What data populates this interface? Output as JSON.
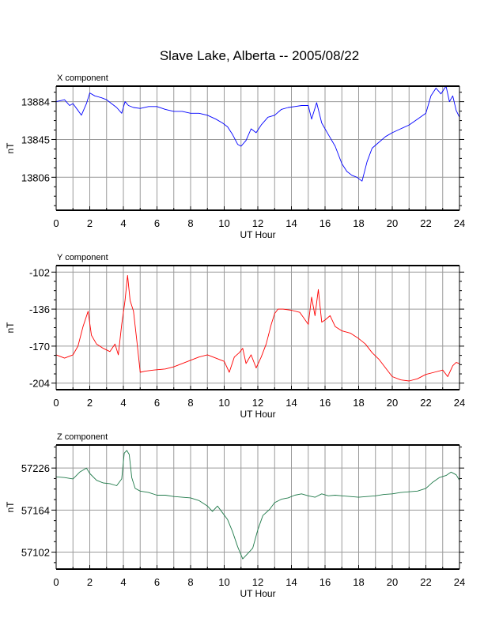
{
  "title": "Slave Lake, Alberta -- 2005/08/22",
  "colors": {
    "x_series": "#0000ff",
    "y_series": "#ff0000",
    "z_series": "#1f7a4a",
    "grid": "#9a9a9a",
    "frame": "#000000",
    "background": "#ffffff"
  },
  "chart_data": [
    {
      "type": "line",
      "panel_label": "X component",
      "xlabel": "UT Hour",
      "ylabel": "nT",
      "xlim": [
        0,
        24
      ],
      "ylim": [
        13772,
        13900
      ],
      "xticks": [
        0,
        2,
        4,
        6,
        8,
        10,
        12,
        14,
        16,
        18,
        20,
        22,
        24
      ],
      "x_minor_step": 1,
      "yticks": [
        13806,
        13845,
        13884
      ],
      "grid": true,
      "series": [
        {
          "color": "#0000ff",
          "x": [
            0,
            0.5,
            0.8,
            1.0,
            1.3,
            1.5,
            1.8,
            2.0,
            2.3,
            2.7,
            3.0,
            3.3,
            3.6,
            3.9,
            4.1,
            4.3,
            4.6,
            5.0,
            5.5,
            6.0,
            6.5,
            7.0,
            7.5,
            8.0,
            8.5,
            9.0,
            9.5,
            9.9,
            10.2,
            10.5,
            10.8,
            11.0,
            11.3,
            11.6,
            11.9,
            12.2,
            12.6,
            13.0,
            13.4,
            13.8,
            14.2,
            14.6,
            15.0,
            15.2,
            15.5,
            15.8,
            16.2,
            16.6,
            17.0,
            17.3,
            17.6,
            17.9,
            18.2,
            18.5,
            18.8,
            19.2,
            19.6,
            20.0,
            20.5,
            21.0,
            21.5,
            22.0,
            22.3,
            22.6,
            22.9,
            23.2,
            23.4,
            23.6,
            23.8,
            24.0
          ],
          "values": [
            13884,
            13886,
            13880,
            13882,
            13875,
            13870,
            13882,
            13893,
            13890,
            13888,
            13886,
            13882,
            13878,
            13872,
            13884,
            13880,
            13878,
            13877,
            13879,
            13879,
            13876,
            13874,
            13874,
            13872,
            13872,
            13870,
            13866,
            13862,
            13858,
            13850,
            13840,
            13838,
            13844,
            13856,
            13852,
            13860,
            13868,
            13870,
            13876,
            13878,
            13879,
            13880,
            13880,
            13866,
            13883,
            13862,
            13850,
            13838,
            13820,
            13812,
            13808,
            13806,
            13802,
            13822,
            13836,
            13842,
            13848,
            13852,
            13856,
            13860,
            13866,
            13872,
            13890,
            13898,
            13892,
            13900,
            13884,
            13890,
            13875,
            13868
          ]
        }
      ]
    },
    {
      "type": "line",
      "panel_label": "Y component",
      "xlabel": "UT Hour",
      "ylabel": "nT",
      "xlim": [
        0,
        24
      ],
      "ylim": [
        -210,
        -96
      ],
      "xticks": [
        0,
        2,
        4,
        6,
        8,
        10,
        12,
        14,
        16,
        18,
        20,
        22,
        24
      ],
      "x_minor_step": 1,
      "yticks": [
        -204,
        -170,
        -136,
        -102
      ],
      "grid": true,
      "series": [
        {
          "color": "#ff0000",
          "x": [
            0,
            0.5,
            1.0,
            1.3,
            1.6,
            1.9,
            2.1,
            2.4,
            2.8,
            3.2,
            3.5,
            3.7,
            3.9,
            4.1,
            4.25,
            4.4,
            4.6,
            4.8,
            5.0,
            5.3,
            5.8,
            6.5,
            7.0,
            7.5,
            8.0,
            8.5,
            9.0,
            9.5,
            10.0,
            10.3,
            10.6,
            10.9,
            11.1,
            11.3,
            11.6,
            11.9,
            12.2,
            12.5,
            12.8,
            13.0,
            13.2,
            13.5,
            14.0,
            14.5,
            15.0,
            15.2,
            15.4,
            15.6,
            15.8,
            16.0,
            16.3,
            16.6,
            17.0,
            17.5,
            18.0,
            18.4,
            18.8,
            19.2,
            19.6,
            20.0,
            20.5,
            21.0,
            21.5,
            22.0,
            22.5,
            23.0,
            23.3,
            23.6,
            23.8,
            24.0
          ],
          "values": [
            -178,
            -181,
            -178,
            -170,
            -152,
            -138,
            -160,
            -168,
            -172,
            -175,
            -168,
            -178,
            -150,
            -128,
            -105,
            -128,
            -138,
            -165,
            -194,
            -193,
            -192,
            -191,
            -189,
            -186,
            -183,
            -180,
            -178,
            -181,
            -184,
            -194,
            -180,
            -176,
            -172,
            -186,
            -178,
            -190,
            -180,
            -168,
            -150,
            -140,
            -136,
            -136,
            -137,
            -139,
            -150,
            -125,
            -142,
            -118,
            -148,
            -146,
            -142,
            -152,
            -156,
            -158,
            -163,
            -168,
            -176,
            -182,
            -190,
            -198,
            -201,
            -202,
            -200,
            -196,
            -194,
            -192,
            -198,
            -188,
            -185,
            -186
          ]
        }
      ]
    },
    {
      "type": "line",
      "panel_label": "Z component",
      "xlabel": "UT Hour",
      "ylabel": "nT",
      "xlim": [
        0,
        24
      ],
      "ylim": [
        57077,
        57260
      ],
      "xticks": [
        0,
        2,
        4,
        6,
        8,
        10,
        12,
        14,
        16,
        18,
        20,
        22,
        24
      ],
      "x_minor_step": 1,
      "yticks": [
        57102,
        57164,
        57226
      ],
      "grid": true,
      "series": [
        {
          "color": "#1f7a4a",
          "x": [
            0,
            0.5,
            1.0,
            1.4,
            1.8,
            2.0,
            2.4,
            2.8,
            3.2,
            3.6,
            3.9,
            4.05,
            4.2,
            4.35,
            4.5,
            4.7,
            5.0,
            5.5,
            6.0,
            6.5,
            7.0,
            7.5,
            8.0,
            8.5,
            9.0,
            9.3,
            9.6,
            9.9,
            10.2,
            10.5,
            10.8,
            11.1,
            11.4,
            11.7,
            12.0,
            12.3,
            12.7,
            13.0,
            13.4,
            13.8,
            14.2,
            14.6,
            15.0,
            15.4,
            15.8,
            16.2,
            16.6,
            17.0,
            17.5,
            18.0,
            18.5,
            19.0,
            19.5,
            20.0,
            20.5,
            21.0,
            21.5,
            22.0,
            22.4,
            22.8,
            23.2,
            23.5,
            23.8,
            24.0
          ],
          "values": [
            57213,
            57212,
            57210,
            57220,
            57226,
            57218,
            57208,
            57204,
            57203,
            57200,
            57210,
            57248,
            57252,
            57246,
            57212,
            57196,
            57192,
            57190,
            57186,
            57186,
            57184,
            57183,
            57182,
            57178,
            57170,
            57162,
            57170,
            57160,
            57150,
            57132,
            57110,
            57092,
            57100,
            57108,
            57135,
            57156,
            57165,
            57175,
            57180,
            57182,
            57186,
            57188,
            57185,
            57183,
            57188,
            57185,
            57186,
            57185,
            57184,
            57183,
            57184,
            57185,
            57187,
            57188,
            57190,
            57191,
            57192,
            57196,
            57205,
            57212,
            57215,
            57220,
            57216,
            57208
          ]
        }
      ]
    }
  ]
}
